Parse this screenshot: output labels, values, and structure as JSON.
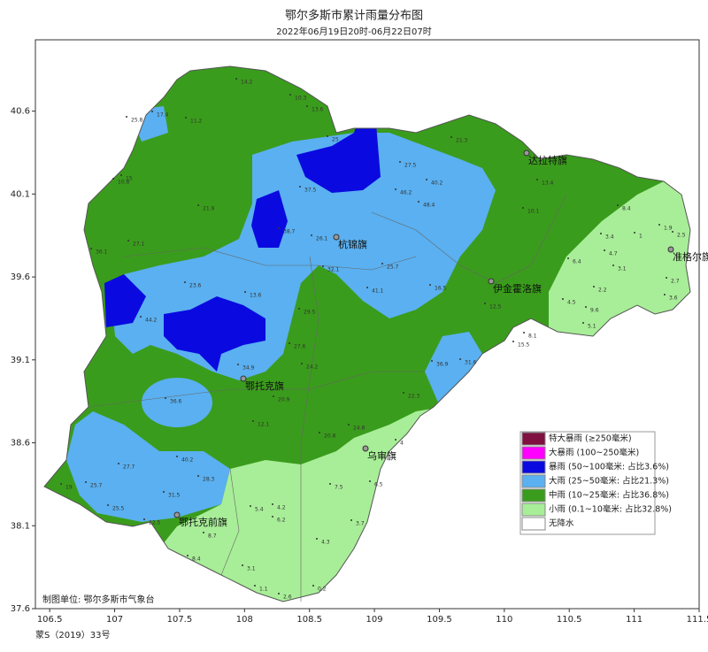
{
  "title": "鄂尔多斯市累计雨量分布图",
  "subtitle": "2022年06月19日20时-06月22日07时",
  "lonlim": [
    106.39,
    111.5
  ],
  "latlim": [
    37.6,
    41.03
  ],
  "lon_ticks": [
    106.5,
    107,
    107.5,
    108,
    108.5,
    109,
    109.5,
    110,
    110.5,
    111,
    111.5
  ],
  "lat_ticks": [
    40.6,
    40.1,
    39.6,
    39.1,
    38.6,
    38.1,
    37.6
  ],
  "legend": [
    {
      "label": "特大暴雨 (≥250毫米)",
      "color": "#7f1040"
    },
    {
      "label": "大暴雨 (100~250毫米)",
      "color": "#ff00ff"
    },
    {
      "label": "暴雨 (50~100毫米:  占比3.6%)",
      "color": "#0a0ae0"
    },
    {
      "label": "大雨 (25~50毫米:  占比21.3%)",
      "color": "#5ab0f0"
    },
    {
      "label": "中雨 (10~25毫米:  占比36.8%)",
      "color": "#3a9c1c"
    },
    {
      "label": "小雨 (0.1~10毫米:  占比32.8%)",
      "color": "#a8ee98"
    },
    {
      "label": "无降水",
      "color": "#ffffff"
    }
  ],
  "places": [
    "杭锦旗",
    "达拉特旗",
    "准格尔旗",
    "伊金霍洛旗",
    "鄂托克旗",
    "乌审旗",
    "鄂托克前旗"
  ],
  "station_values": [
    14.2,
    10.3,
    13.6,
    17.4,
    25.8,
    11.2,
    25,
    27.5,
    40.2,
    46.2,
    37.5,
    48.4,
    21.9,
    10.8,
    15,
    38.7,
    26.1,
    27.1,
    36.1,
    32.1,
    25.7,
    23.6,
    13.6,
    29.5,
    44.2,
    41.1,
    16.5,
    27.6,
    34.9,
    24.2,
    31.6,
    36.9,
    36.6,
    20.9,
    12.1,
    22.3,
    24.8,
    20.8,
    40.2,
    28.3,
    27.7,
    25.7,
    19,
    31.5,
    25.5,
    22.5,
    5.4,
    4.2,
    6.2,
    7.5,
    6.5,
    3.7,
    4.3,
    8.7,
    8.4,
    3.1,
    1.1,
    2.6,
    0.2,
    4,
    3.4,
    1,
    1.9,
    2.5,
    4.7,
    3.1,
    2.2,
    4.5,
    5.1,
    9.6,
    2.7,
    3.6,
    8.4,
    13.4,
    10.1,
    6.4,
    12.5,
    15.5,
    8.1,
    21.3
  ],
  "footer": {
    "unit": "制图单位: 鄂尔多斯市气象台",
    "approval": "蒙S（2019）33号"
  }
}
